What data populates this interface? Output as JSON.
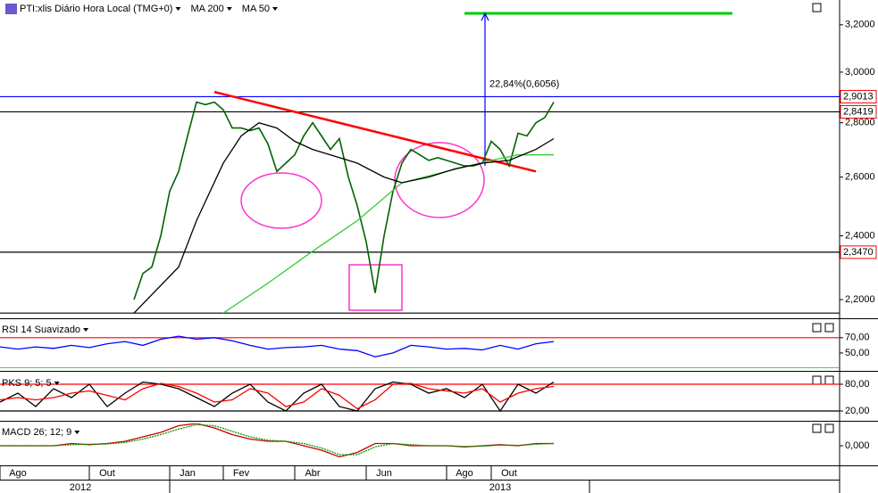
{
  "chart_data": [
    {
      "type": "line",
      "log_scale": true,
      "ylim": [
        2.15,
        3.31
      ],
      "yticks": [
        {
          "value": 2.2,
          "label": "2,2000"
        },
        {
          "value": 2.4,
          "label": "2,4000"
        },
        {
          "value": 2.6,
          "label": "2,6000"
        },
        {
          "value": 2.8,
          "label": "2,8000"
        },
        {
          "value": 3.0,
          "label": "3,0000"
        },
        {
          "value": 3.2,
          "label": "3,2000"
        }
      ],
      "xlim": [
        0,
        94
      ],
      "xticks": [
        {
          "value": 2,
          "label": "Ago"
        },
        {
          "value": 12,
          "label": "Out"
        },
        {
          "value": 21,
          "label": "Jan"
        },
        {
          "value": 27,
          "label": "Fev"
        },
        {
          "value": 35,
          "label": "Abr"
        },
        {
          "value": 43,
          "label": "Jun"
        },
        {
          "value": 52,
          "label": "Ago"
        },
        {
          "value": 57,
          "label": "Out"
        }
      ],
      "year_ticks": [
        {
          "value": 9,
          "label": "2012"
        },
        {
          "value": 56,
          "label": "2013"
        }
      ],
      "series": [
        {
          "name": "PTI:xlis Diário Hora Local (TMG+0)",
          "color": "#006400",
          "x": [
            15,
            16,
            17,
            18,
            19,
            20,
            21,
            22,
            23,
            24,
            25,
            26,
            27,
            28,
            29,
            30,
            31,
            32,
            33,
            34,
            35,
            36,
            37,
            38,
            39,
            40,
            41,
            42,
            43,
            44,
            45,
            46,
            47,
            48,
            49,
            50,
            51,
            52,
            53,
            54,
            55,
            56,
            57,
            58,
            59,
            60,
            61,
            62
          ],
          "values": [
            2.2,
            2.28,
            2.3,
            2.4,
            2.55,
            2.62,
            2.75,
            2.88,
            2.87,
            2.88,
            2.85,
            2.78,
            2.78,
            2.77,
            2.78,
            2.72,
            2.62,
            2.65,
            2.68,
            2.75,
            2.8,
            2.75,
            2.7,
            2.74,
            2.6,
            2.5,
            2.38,
            2.22,
            2.4,
            2.55,
            2.65,
            2.7,
            2.68,
            2.66,
            2.67,
            2.66,
            2.65,
            2.64,
            2.64,
            2.65,
            2.73,
            2.7,
            2.64,
            2.76,
            2.75,
            2.8,
            2.82,
            2.88
          ]
        },
        {
          "name": "MA 200",
          "color": "#33cc33",
          "x": [
            25,
            30,
            35,
            40,
            45,
            50,
            55,
            58,
            62
          ],
          "values": [
            2.16,
            2.25,
            2.35,
            2.45,
            2.58,
            2.62,
            2.66,
            2.68,
            2.68
          ]
        },
        {
          "name": "MA 50",
          "color": "#000000",
          "x": [
            15,
            20,
            22,
            25,
            27,
            29,
            31,
            33,
            35,
            37,
            40,
            43,
            45,
            48,
            51,
            54,
            57,
            60,
            62
          ],
          "values": [
            2.16,
            2.3,
            2.45,
            2.65,
            2.75,
            2.8,
            2.78,
            2.73,
            2.7,
            2.68,
            2.65,
            2.6,
            2.58,
            2.6,
            2.63,
            2.65,
            2.66,
            2.7,
            2.74
          ]
        }
      ],
      "levels": [
        {
          "value": 2.9013,
          "label": "2,9013",
          "color": "#0000ff"
        },
        {
          "value": 2.8419,
          "label": "2,8419",
          "color": "#000000"
        },
        {
          "value": 2.347,
          "label": "2,3470",
          "color": "#000000"
        },
        {
          "value": 2.16,
          "color": "#000000"
        }
      ],
      "trendline": {
        "x": [
          24,
          60
        ],
        "y": [
          2.92,
          2.62
        ],
        "color": "#ff0000"
      },
      "target": {
        "x": [
          52,
          82
        ],
        "y": 3.25,
        "color": "#00cc00"
      },
      "arrow": {
        "x": 54.3,
        "from": 2.64,
        "to": 3.25,
        "label": "22,84%(0,6056)",
        "color": "#0000ff"
      }
    },
    {
      "type": "line",
      "ylim": [
        30,
        92
      ],
      "xlim": [
        0,
        94
      ],
      "yticks": [
        {
          "value": 70,
          "label": "70,00"
        },
        {
          "value": 50,
          "label": "50,00"
        }
      ],
      "series": [
        {
          "name": "RSI 14 Suavizado",
          "color": "#0000ff",
          "x": [
            0,
            2,
            4,
            6,
            8,
            10,
            12,
            14,
            16,
            18,
            20,
            22,
            24,
            26,
            28,
            30,
            32,
            34,
            36,
            38,
            40,
            42,
            44,
            46,
            48,
            50,
            52,
            54,
            56,
            58,
            60,
            62
          ],
          "values": [
            58,
            55,
            58,
            56,
            60,
            57,
            62,
            65,
            60,
            68,
            72,
            68,
            70,
            66,
            60,
            55,
            57,
            58,
            60,
            55,
            53,
            45,
            50,
            60,
            58,
            55,
            56,
            54,
            60,
            55,
            62,
            65
          ]
        }
      ],
      "levels": [
        {
          "value": 70,
          "color": "#ff0000"
        },
        {
          "value": 30,
          "color": "#00a000"
        }
      ]
    },
    {
      "type": "line",
      "ylim": [
        2,
        102
      ],
      "xlim": [
        0,
        94
      ],
      "yticks": [
        {
          "value": 80,
          "label": "80,00"
        },
        {
          "value": 20,
          "label": "20,00"
        }
      ],
      "series": [
        {
          "name": "PKS 9; 5; 5",
          "color": "#000000",
          "x": [
            0,
            2,
            4,
            6,
            8,
            10,
            12,
            14,
            16,
            18,
            20,
            22,
            24,
            26,
            28,
            30,
            32,
            34,
            36,
            38,
            40,
            42,
            44,
            46,
            48,
            50,
            52,
            54,
            56,
            58,
            60,
            62
          ],
          "values": [
            40,
            60,
            30,
            70,
            50,
            80,
            30,
            60,
            85,
            80,
            70,
            50,
            30,
            60,
            80,
            40,
            20,
            60,
            80,
            30,
            20,
            70,
            85,
            80,
            60,
            70,
            50,
            80,
            20,
            80,
            60,
            85
          ]
        },
        {
          "color": "#ff0000",
          "x": [
            0,
            2,
            4,
            6,
            8,
            10,
            12,
            14,
            16,
            18,
            20,
            22,
            24,
            26,
            28,
            30,
            32,
            34,
            36,
            38,
            40,
            42,
            44,
            46,
            48,
            50,
            52,
            54,
            56,
            58,
            60,
            62
          ],
          "values": [
            45,
            50,
            45,
            50,
            60,
            65,
            55,
            45,
            70,
            82,
            75,
            60,
            40,
            45,
            70,
            60,
            30,
            40,
            70,
            55,
            25,
            45,
            80,
            82,
            70,
            65,
            60,
            70,
            40,
            60,
            70,
            75
          ]
        }
      ],
      "levels": [
        {
          "value": 80,
          "color": "#ff0000"
        },
        {
          "value": 20,
          "color": "#000000"
        }
      ]
    },
    {
      "type": "line",
      "ylim": [
        -0.08,
        0.1
      ],
      "xlim": [
        0,
        94
      ],
      "yticks": [
        {
          "value": 0,
          "label": "0,000"
        }
      ],
      "series": [
        {
          "name": "MACD 26; 12; 9",
          "color": "#cc0000",
          "x": [
            0,
            2,
            4,
            6,
            8,
            10,
            12,
            14,
            16,
            18,
            20,
            22,
            24,
            26,
            28,
            30,
            32,
            34,
            36,
            38,
            40,
            42,
            44,
            46,
            48,
            50,
            52,
            54,
            56,
            58,
            60,
            62
          ],
          "values": [
            0,
            0,
            0,
            0,
            0.01,
            0.005,
            0.01,
            0.02,
            0.04,
            0.06,
            0.09,
            0.1,
            0.08,
            0.05,
            0.03,
            0.02,
            0.02,
            0,
            -0.02,
            -0.05,
            -0.03,
            0.01,
            0.01,
            0,
            0,
            0,
            -0.005,
            0,
            0.005,
            0,
            0.01,
            0.01
          ]
        },
        {
          "color": "#009900",
          "x": [
            0,
            2,
            4,
            6,
            8,
            10,
            12,
            14,
            16,
            18,
            20,
            22,
            24,
            26,
            28,
            30,
            32,
            34,
            36,
            38,
            40,
            42,
            44,
            46,
            48,
            50,
            52,
            54,
            56,
            58,
            60,
            62
          ],
          "values": [
            0,
            0,
            0,
            0,
            0.005,
            0.007,
            0.008,
            0.015,
            0.03,
            0.05,
            0.075,
            0.095,
            0.09,
            0.065,
            0.04,
            0.025,
            0.02,
            0.01,
            -0.01,
            -0.04,
            -0.04,
            -0.005,
            0.01,
            0.005,
            0,
            0,
            -0.003,
            -0.002,
            0.003,
            0.002,
            0.007,
            0.01
          ]
        }
      ]
    }
  ]
}
